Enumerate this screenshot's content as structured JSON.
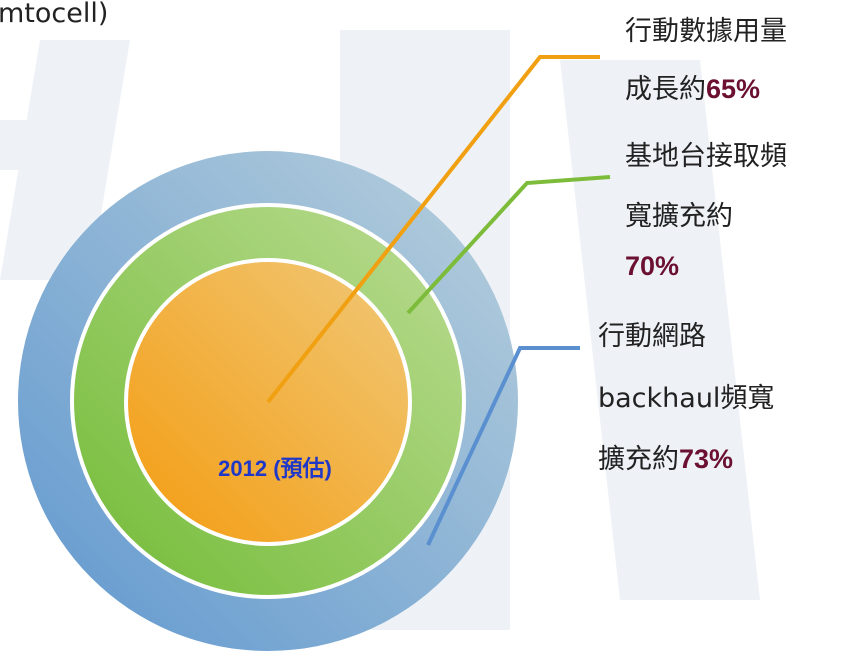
{
  "header_fragment": "mtocell)",
  "center_label": "2012 (預估)",
  "callouts": [
    {
      "lines": [
        [
          {
            "text": "行動數據用量"
          }
        ],
        [
          {
            "text": "成長約"
          },
          {
            "text": "65%",
            "bold": true
          }
        ]
      ]
    },
    {
      "lines": [
        [
          {
            "text": "基地台接取頻"
          }
        ],
        [
          {
            "text": "寬擴充約"
          }
        ],
        [
          {
            "text": "70%",
            "bold": true
          }
        ]
      ]
    },
    {
      "lines": [
        [
          {
            "text": "行動網路"
          }
        ],
        [
          {
            "text": "backhaul頻寬"
          }
        ],
        [
          {
            "text": "擴充約"
          },
          {
            "text": "73%",
            "bold": true
          }
        ]
      ]
    }
  ]
}
